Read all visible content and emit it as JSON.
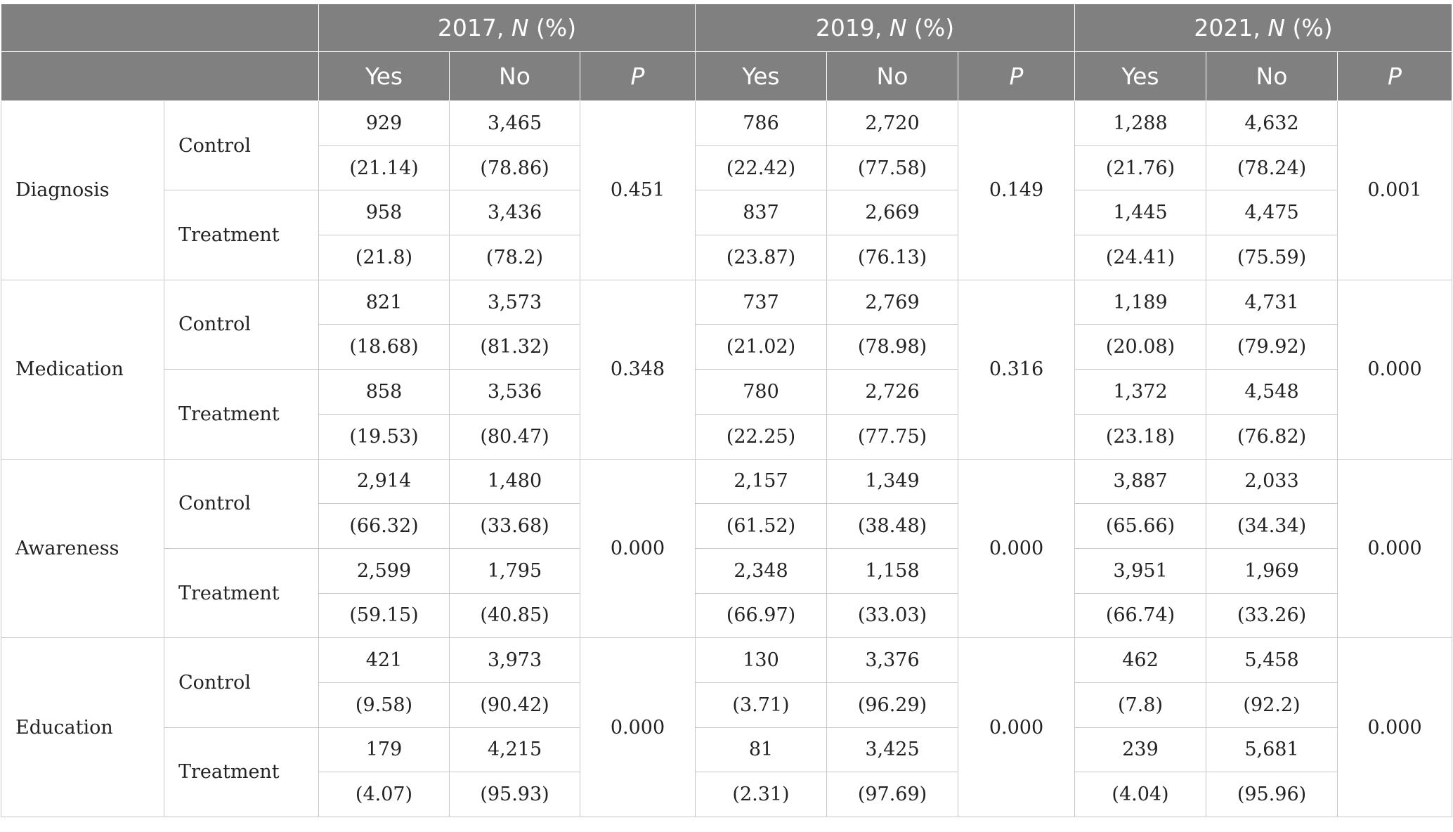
{
  "header": {
    "years": [
      {
        "year_label": "2017,",
        "n_label": "N",
        "pct_label": "(%)"
      },
      {
        "year_label": "2019,",
        "n_label": "N",
        "pct_label": "(%)"
      },
      {
        "year_label": "2021,",
        "n_label": "N",
        "pct_label": "(%)"
      }
    ],
    "yes_label": "Yes",
    "no_label": "No",
    "p_label": "P"
  },
  "rows": [
    {
      "measure": "Diagnosis",
      "groups": [
        {
          "name": "Control",
          "n": [
            [
              "929",
              "3,465"
            ],
            [
              "786",
              "2,720"
            ],
            [
              "1,288",
              "4,632"
            ]
          ],
          "pct": [
            [
              "(21.14)",
              "(78.86)"
            ],
            [
              "(22.42)",
              "(77.58)"
            ],
            [
              "(21.76)",
              "(78.24)"
            ]
          ]
        },
        {
          "name": "Treatment",
          "n": [
            [
              "958",
              "3,436"
            ],
            [
              "837",
              "2,669"
            ],
            [
              "1,445",
              "4,475"
            ]
          ],
          "pct": [
            [
              "(21.8)",
              "(78.2)"
            ],
            [
              "(23.87)",
              "(76.13)"
            ],
            [
              "(24.41)",
              "(75.59)"
            ]
          ]
        }
      ],
      "p": [
        "0.451",
        "0.149",
        "0.001"
      ]
    },
    {
      "measure": "Medication",
      "groups": [
        {
          "name": "Control",
          "n": [
            [
              "821",
              "3,573"
            ],
            [
              "737",
              "2,769"
            ],
            [
              "1,189",
              "4,731"
            ]
          ],
          "pct": [
            [
              "(18.68)",
              "(81.32)"
            ],
            [
              "(21.02)",
              "(78.98)"
            ],
            [
              "(20.08)",
              "(79.92)"
            ]
          ]
        },
        {
          "name": "Treatment",
          "n": [
            [
              "858",
              "3,536"
            ],
            [
              "780",
              "2,726"
            ],
            [
              "1,372",
              "4,548"
            ]
          ],
          "pct": [
            [
              "(19.53)",
              "(80.47)"
            ],
            [
              "(22.25)",
              "(77.75)"
            ],
            [
              "(23.18)",
              "(76.82)"
            ]
          ]
        }
      ],
      "p": [
        "0.348",
        "0.316",
        "0.000"
      ]
    },
    {
      "measure": "Awareness",
      "groups": [
        {
          "name": "Control",
          "n": [
            [
              "2,914",
              "1,480"
            ],
            [
              "2,157",
              "1,349"
            ],
            [
              "3,887",
              "2,033"
            ]
          ],
          "pct": [
            [
              "(66.32)",
              "(33.68)"
            ],
            [
              "(61.52)",
              "(38.48)"
            ],
            [
              "(65.66)",
              "(34.34)"
            ]
          ]
        },
        {
          "name": "Treatment",
          "n": [
            [
              "2,599",
              "1,795"
            ],
            [
              "2,348",
              "1,158"
            ],
            [
              "3,951",
              "1,969"
            ]
          ],
          "pct": [
            [
              "(59.15)",
              "(40.85)"
            ],
            [
              "(66.97)",
              "(33.03)"
            ],
            [
              "(66.74)",
              "(33.26)"
            ]
          ]
        }
      ],
      "p": [
        "0.000",
        "0.000",
        "0.000"
      ]
    },
    {
      "measure": "Education",
      "groups": [
        {
          "name": "Control",
          "n": [
            [
              "421",
              "3,973"
            ],
            [
              "130",
              "3,376"
            ],
            [
              "462",
              "5,458"
            ]
          ],
          "pct": [
            [
              "(9.58)",
              "(90.42)"
            ],
            [
              "(3.71)",
              "(96.29)"
            ],
            [
              "(7.8)",
              "(92.2)"
            ]
          ]
        },
        {
          "name": "Treatment",
          "n": [
            [
              "179",
              "4,215"
            ],
            [
              "81",
              "3,425"
            ],
            [
              "239",
              "5,681"
            ]
          ],
          "pct": [
            [
              "(4.07)",
              "(95.93)"
            ],
            [
              "(2.31)",
              "(97.69)"
            ],
            [
              "(4.04)",
              "(95.96)"
            ]
          ]
        }
      ],
      "p": [
        "0.000",
        "0.000",
        "0.000"
      ]
    }
  ]
}
